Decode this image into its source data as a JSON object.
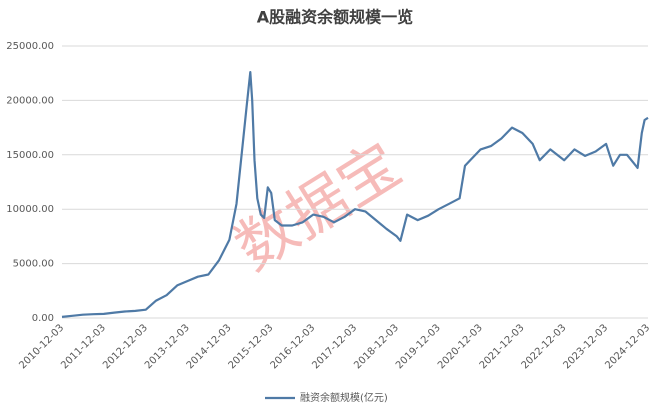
{
  "chart_data": {
    "type": "line",
    "title": "A股融资余额规模一览",
    "watermark": "数据宝",
    "x": [
      "2010-12-03",
      "2011-03-03",
      "2011-06-03",
      "2011-09-03",
      "2011-12-03",
      "2012-03-03",
      "2012-06-03",
      "2012-09-03",
      "2012-12-03",
      "2013-03-03",
      "2013-06-03",
      "2013-09-03",
      "2013-12-03",
      "2014-03-03",
      "2014-06-03",
      "2014-09-03",
      "2014-12-03",
      "2015-02-03",
      "2015-04-03",
      "2015-05-03",
      "2015-06-03",
      "2015-06-20",
      "2015-07-10",
      "2015-08-03",
      "2015-09-03",
      "2015-10-03",
      "2015-11-03",
      "2015-12-03",
      "2016-01-03",
      "2016-03-03",
      "2016-06-03",
      "2016-09-03",
      "2016-12-03",
      "2017-03-03",
      "2017-06-03",
      "2017-09-03",
      "2017-12-03",
      "2018-03-03",
      "2018-06-03",
      "2018-09-03",
      "2018-12-03",
      "2019-01-03",
      "2019-03-03",
      "2019-06-03",
      "2019-09-03",
      "2019-12-03",
      "2020-03-03",
      "2020-06-03",
      "2020-07-20",
      "2020-09-03",
      "2020-12-03",
      "2021-03-03",
      "2021-06-03",
      "2021-09-03",
      "2021-12-03",
      "2022-03-03",
      "2022-05-03",
      "2022-08-03",
      "2022-12-03",
      "2023-03-03",
      "2023-06-03",
      "2023-09-03",
      "2023-12-03",
      "2024-01-03",
      "2024-02-03",
      "2024-04-03",
      "2024-06-03",
      "2024-09-03",
      "2024-10-10",
      "2024-11-03",
      "2024-12-03"
    ],
    "series": [
      {
        "name": "融资余额规模(亿元)",
        "color": "#4f7aa6",
        "values": [
          100,
          200,
          300,
          350,
          380,
          500,
          600,
          650,
          760,
          1600,
          2100,
          3000,
          3400,
          3800,
          4000,
          5300,
          7200,
          10500,
          16500,
          19500,
          22600,
          20000,
          14500,
          11000,
          9500,
          9200,
          12000,
          11500,
          9000,
          8500,
          8500,
          8800,
          9500,
          9300,
          8800,
          9300,
          10000,
          9800,
          9000,
          8200,
          7500,
          7100,
          9500,
          9000,
          9400,
          10000,
          10500,
          11000,
          14000,
          14500,
          15500,
          15800,
          16500,
          17500,
          17000,
          16000,
          14500,
          15500,
          14500,
          15500,
          14900,
          15300,
          16000,
          15000,
          14000,
          15000,
          15000,
          13800,
          17000,
          18200,
          18400
        ]
      }
    ],
    "xlim": [
      "2010-12-03",
      "2024-12-03"
    ],
    "xticks": [
      "2010-12-03",
      "2011-12-03",
      "2012-12-03",
      "2013-12-03",
      "2014-12-03",
      "2015-12-03",
      "2016-12-03",
      "2017-12-03",
      "2018-12-03",
      "2019-12-03",
      "2020-12-03",
      "2021-12-03",
      "2022-12-03",
      "2023-12-03",
      "2024-12-03"
    ],
    "ylim": [
      0,
      25000
    ],
    "yticks": [
      {
        "value": 0,
        "label": "0.00"
      },
      {
        "value": 5000,
        "label": "5000.00"
      },
      {
        "value": 10000,
        "label": "10000.00"
      },
      {
        "value": 15000,
        "label": "15000.00"
      },
      {
        "value": 20000,
        "label": "20000.00"
      },
      {
        "value": 25000,
        "label": "25000.00"
      }
    ],
    "grid": true
  }
}
